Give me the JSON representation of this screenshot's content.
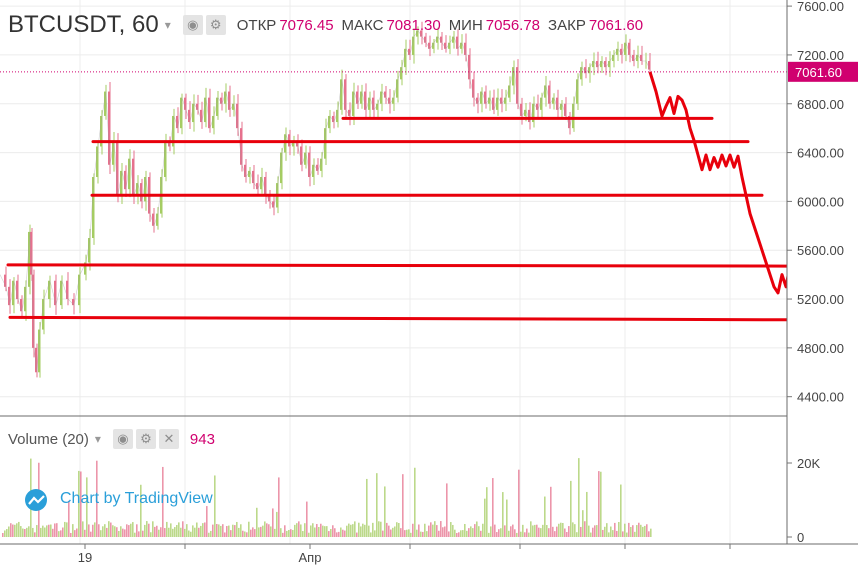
{
  "header": {
    "symbol": "BTCUSDT, 60",
    "open_label": "ОТКР",
    "open_value": "7076.45",
    "high_label": "МАКС",
    "high_value": "7081.30",
    "low_label": "МИН",
    "low_value": "7056.78",
    "close_label": "ЗАКР",
    "close_value": "7061.60"
  },
  "volume_header": {
    "name": "Volume (20)",
    "value": "943"
  },
  "watermark": "Chart by TradingView",
  "colors": {
    "accent": "#d0006f",
    "up": "#a5cc63",
    "down": "#e6718d",
    "drawing": "#e8000b",
    "line": "#f0a3bf"
  },
  "chart_data": [
    {
      "type": "line",
      "title": "BTCUSDT, 60",
      "y_ticks": [
        "7600.00",
        "7200.00",
        "6800.00",
        "6400.00",
        "6000.00",
        "5600.00",
        "5200.00",
        "4800.00",
        "4400.00"
      ],
      "ylim": [
        4250,
        7650
      ],
      "x_tick_labels": [
        "19",
        "Апр"
      ],
      "last_price": "7061.60",
      "series": [
        {
          "values": [
            [
              0,
              5400
            ],
            [
              6,
              5300
            ],
            [
              10,
              5150
            ],
            [
              14,
              5350
            ],
            [
              18,
              5200
            ],
            [
              22,
              5100
            ],
            [
              26,
              5300
            ],
            [
              30,
              5750
            ],
            [
              32,
              5400
            ],
            [
              34,
              4800
            ],
            [
              37,
              4600
            ],
            [
              40,
              4950
            ],
            [
              44,
              5200
            ],
            [
              50,
              5350
            ],
            [
              56,
              5150
            ],
            [
              62,
              5350
            ],
            [
              68,
              5200
            ],
            [
              74,
              5150
            ],
            [
              80,
              5400
            ],
            [
              86,
              5500
            ],
            [
              90,
              5700
            ],
            [
              94,
              6200
            ],
            [
              98,
              6450
            ],
            [
              102,
              6700
            ],
            [
              106,
              6900
            ],
            [
              110,
              6300
            ],
            [
              114,
              6500
            ],
            [
              118,
              6050
            ],
            [
              122,
              6250
            ],
            [
              126,
              6100
            ],
            [
              130,
              6350
            ],
            [
              134,
              6050
            ],
            [
              138,
              6150
            ],
            [
              142,
              6000
            ],
            [
              146,
              6200
            ],
            [
              150,
              5900
            ],
            [
              154,
              5800
            ],
            [
              158,
              5900
            ],
            [
              162,
              6200
            ],
            [
              166,
              6500
            ],
            [
              170,
              6450
            ],
            [
              174,
              6700
            ],
            [
              178,
              6600
            ],
            [
              182,
              6850
            ],
            [
              186,
              6750
            ],
            [
              190,
              6650
            ],
            [
              194,
              6800
            ],
            [
              198,
              6750
            ],
            [
              202,
              6650
            ],
            [
              206,
              6850
            ],
            [
              210,
              6600
            ],
            [
              214,
              6700
            ],
            [
              218,
              6850
            ],
            [
              222,
              6800
            ],
            [
              226,
              6900
            ],
            [
              230,
              6750
            ],
            [
              234,
              6800
            ],
            [
              238,
              6600
            ],
            [
              242,
              6300
            ],
            [
              246,
              6200
            ],
            [
              250,
              6250
            ],
            [
              254,
              6150
            ],
            [
              258,
              6100
            ],
            [
              262,
              6200
            ],
            [
              266,
              6050
            ],
            [
              270,
              6000
            ],
            [
              274,
              5950
            ],
            [
              278,
              6150
            ],
            [
              282,
              6400
            ],
            [
              286,
              6550
            ],
            [
              290,
              6450
            ],
            [
              294,
              6500
            ],
            [
              298,
              6450
            ],
            [
              302,
              6300
            ],
            [
              306,
              6400
            ],
            [
              310,
              6200
            ],
            [
              314,
              6300
            ],
            [
              318,
              6250
            ],
            [
              322,
              6350
            ],
            [
              326,
              6600
            ],
            [
              330,
              6700
            ],
            [
              334,
              6650
            ],
            [
              338,
              6750
            ],
            [
              342,
              7000
            ],
            [
              346,
              6750
            ],
            [
              350,
              6700
            ],
            [
              354,
              6900
            ],
            [
              358,
              6800
            ],
            [
              362,
              6900
            ],
            [
              366,
              6750
            ],
            [
              370,
              6850
            ],
            [
              374,
              6750
            ],
            [
              378,
              6800
            ],
            [
              382,
              6900
            ],
            [
              386,
              6850
            ],
            [
              390,
              6800
            ],
            [
              394,
              6850
            ],
            [
              398,
              7000
            ],
            [
              402,
              7100
            ],
            [
              406,
              7250
            ],
            [
              410,
              7200
            ],
            [
              414,
              7350
            ],
            [
              418,
              7400
            ],
            [
              422,
              7350
            ],
            [
              426,
              7300
            ],
            [
              430,
              7250
            ],
            [
              434,
              7300
            ],
            [
              438,
              7350
            ],
            [
              442,
              7300
            ],
            [
              446,
              7250
            ],
            [
              450,
              7300
            ],
            [
              454,
              7350
            ],
            [
              458,
              7250
            ],
            [
              462,
              7300
            ],
            [
              466,
              7200
            ],
            [
              470,
              7000
            ],
            [
              474,
              6850
            ],
            [
              478,
              6800
            ],
            [
              482,
              6900
            ],
            [
              486,
              6800
            ],
            [
              490,
              6850
            ],
            [
              494,
              6750
            ],
            [
              498,
              6850
            ],
            [
              502,
              6800
            ],
            [
              506,
              6850
            ],
            [
              510,
              6950
            ],
            [
              514,
              7100
            ],
            [
              518,
              6800
            ],
            [
              522,
              6700
            ],
            [
              526,
              6750
            ],
            [
              530,
              6650
            ],
            [
              534,
              6800
            ],
            [
              538,
              6750
            ],
            [
              542,
              6850
            ],
            [
              546,
              6950
            ],
            [
              550,
              6800
            ],
            [
              554,
              6850
            ],
            [
              558,
              6750
            ],
            [
              562,
              6800
            ],
            [
              566,
              6700
            ],
            [
              570,
              6600
            ],
            [
              574,
              6800
            ],
            [
              578,
              7000
            ],
            [
              582,
              7100
            ],
            [
              586,
              7050
            ],
            [
              590,
              7100
            ],
            [
              594,
              7150
            ],
            [
              598,
              7100
            ],
            [
              602,
              7150
            ],
            [
              606,
              7100
            ],
            [
              610,
              7150
            ],
            [
              614,
              7200
            ],
            [
              618,
              7250
            ],
            [
              622,
              7200
            ],
            [
              626,
              7300
            ],
            [
              630,
              7200
            ],
            [
              634,
              7150
            ],
            [
              638,
              7200
            ],
            [
              642,
              7150
            ],
            [
              646,
              7150
            ],
            [
              650,
              7080
            ]
          ]
        }
      ],
      "annotations": {
        "horizontal_lines": [
          {
            "x1": 343,
            "y1": 6680,
            "x2": 712,
            "y2": 6680
          },
          {
            "x1": 93,
            "y1": 6490,
            "x2": 748,
            "y2": 6490
          },
          {
            "x1": 92,
            "y1": 6050,
            "x2": 762,
            "y2": 6050
          },
          {
            "x1": 8,
            "y1": 5480,
            "x2": 790,
            "y2": 5470
          },
          {
            "x1": 10,
            "y1": 5050,
            "x2": 792,
            "y2": 5030
          }
        ],
        "forecast_path": [
          [
            650,
            7060
          ],
          [
            656,
            6900
          ],
          [
            662,
            6700
          ],
          [
            666,
            6780
          ],
          [
            670,
            6850
          ],
          [
            674,
            6720
          ],
          [
            678,
            6860
          ],
          [
            682,
            6830
          ],
          [
            686,
            6750
          ],
          [
            690,
            6600
          ],
          [
            694,
            6500
          ],
          [
            698,
            6380
          ],
          [
            702,
            6260
          ],
          [
            706,
            6380
          ],
          [
            710,
            6260
          ],
          [
            714,
            6360
          ],
          [
            718,
            6280
          ],
          [
            722,
            6380
          ],
          [
            726,
            6290
          ],
          [
            730,
            6380
          ],
          [
            734,
            6280
          ],
          [
            738,
            6370
          ],
          [
            742,
            6200
          ],
          [
            746,
            6050
          ],
          [
            750,
            5900
          ],
          [
            756,
            5750
          ],
          [
            762,
            5600
          ],
          [
            768,
            5450
          ],
          [
            774,
            5300
          ],
          [
            778,
            5250
          ],
          [
            782,
            5400
          ],
          [
            786,
            5300
          ],
          [
            790,
            5480
          ],
          [
            792,
            5300
          ]
        ]
      }
    },
    {
      "type": "bar",
      "title": "Volume (20)",
      "y_ticks": [
        "20K",
        "0"
      ],
      "last_value": 943
    }
  ]
}
